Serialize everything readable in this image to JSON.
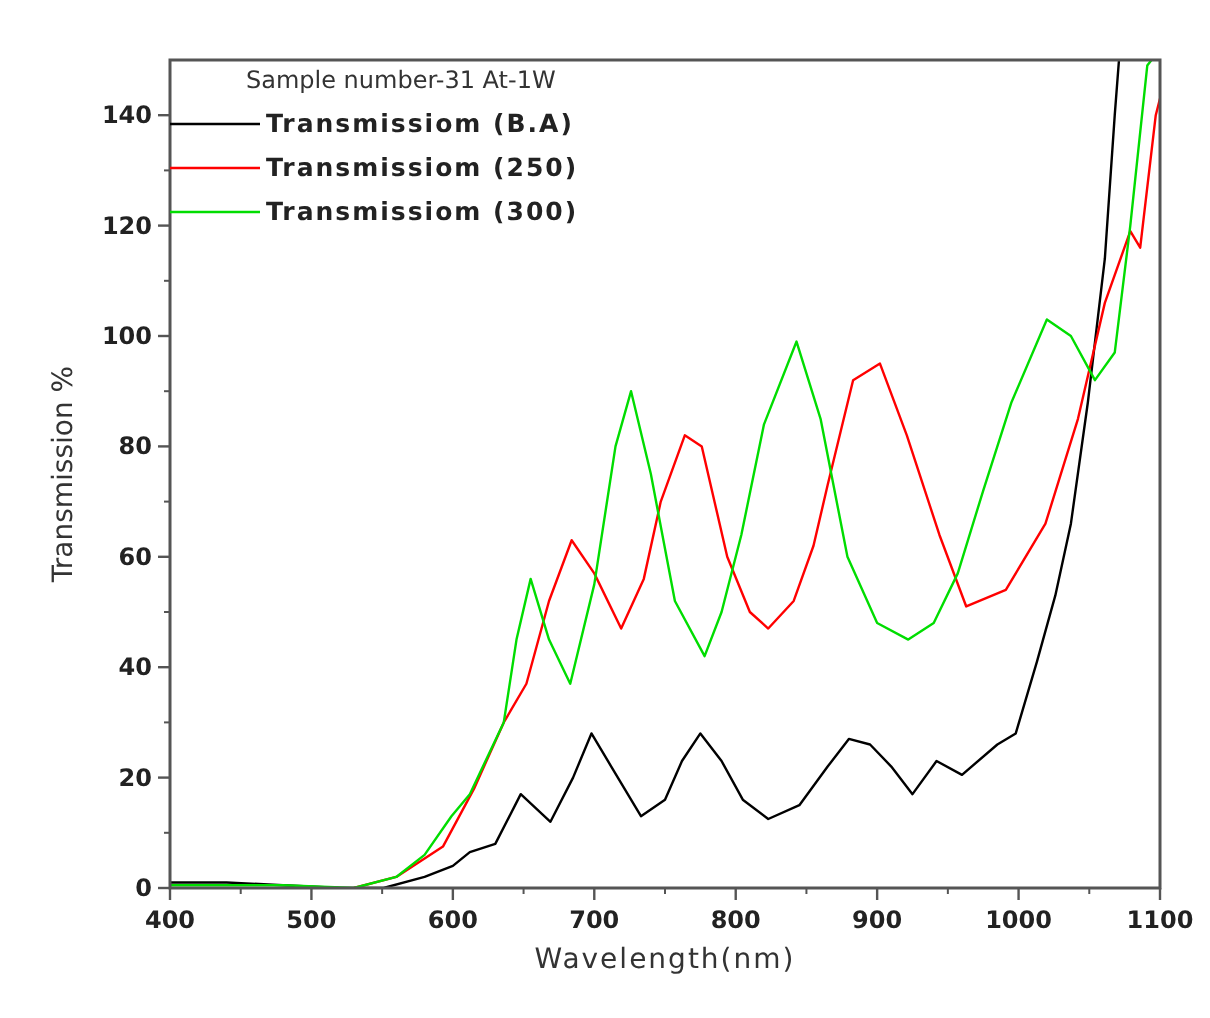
{
  "chart_data": {
    "type": "line",
    "xlabel": "Wavelength(nm)",
    "ylabel": "Transmission %",
    "legend_title": "Sample number-31  At-1W",
    "xlim": [
      400,
      1100
    ],
    "ylim": [
      0,
      150
    ],
    "xticks": [
      400,
      500,
      600,
      700,
      800,
      900,
      1000,
      1100
    ],
    "yticks": [
      0,
      20,
      40,
      60,
      80,
      100,
      120,
      140
    ],
    "grid": false,
    "legend": "top left",
    "line_style": "solid",
    "series": [
      {
        "name": "Transmissiom (B.A)",
        "color": "#000000",
        "x": [
          400,
          440,
          480,
          520,
          551,
          580,
          600,
          612,
          630,
          648,
          669,
          685,
          698,
          712,
          733,
          750,
          762,
          775,
          790,
          805,
          823,
          845,
          865,
          880,
          895,
          910,
          925,
          942,
          960,
          985,
          998,
          1013,
          1026,
          1037,
          1049,
          1061,
          1068,
          1071
        ],
        "values": [
          1,
          1,
          0.5,
          0,
          0,
          2,
          4,
          6.5,
          8,
          17,
          12,
          20,
          28,
          22,
          13,
          16,
          23,
          28,
          23,
          16,
          12.5,
          15,
          22,
          27,
          26,
          22,
          17,
          23,
          20.5,
          26,
          28,
          41,
          53,
          66,
          88,
          114,
          140,
          150
        ]
      },
      {
        "name": "Transmissiom (250)",
        "color": "#ff0000",
        "x": [
          530,
          560,
          593,
          615,
          636,
          652,
          668,
          684,
          700,
          719,
          735,
          747,
          764,
          776,
          794,
          810,
          823,
          841,
          855,
          865,
          883,
          902,
          921,
          944,
          963,
          991,
          1019,
          1042,
          1061,
          1079,
          1086,
          1097,
          1100
        ],
        "values": [
          0,
          2,
          7.5,
          18,
          30,
          37,
          52,
          63,
          57,
          47,
          56,
          70,
          82,
          80,
          60,
          50,
          47,
          52,
          62,
          73,
          92,
          95,
          82,
          64,
          51,
          54,
          66,
          85,
          106,
          119,
          116,
          140,
          143
        ]
      },
      {
        "name": "Transmissiom (300)",
        "color": "#00dd00",
        "x": [
          400,
          460,
          480,
          530,
          560,
          580,
          599,
          612,
          636,
          645,
          655,
          668,
          683,
          700,
          715,
          726,
          740,
          757,
          778,
          790,
          804,
          820,
          843,
          860,
          879,
          900,
          922,
          940,
          957,
          975,
          995,
          1020,
          1037,
          1054,
          1068,
          1079,
          1091,
          1094
        ],
        "values": [
          0.5,
          0.5,
          0.5,
          0,
          2,
          6,
          13,
          17,
          30,
          45,
          56,
          45,
          37,
          55,
          80,
          90,
          75,
          52,
          42,
          50,
          64,
          84,
          99,
          85,
          60,
          48,
          45,
          48,
          57,
          72,
          88,
          103,
          100,
          92,
          97,
          120,
          149,
          150
        ]
      }
    ]
  }
}
